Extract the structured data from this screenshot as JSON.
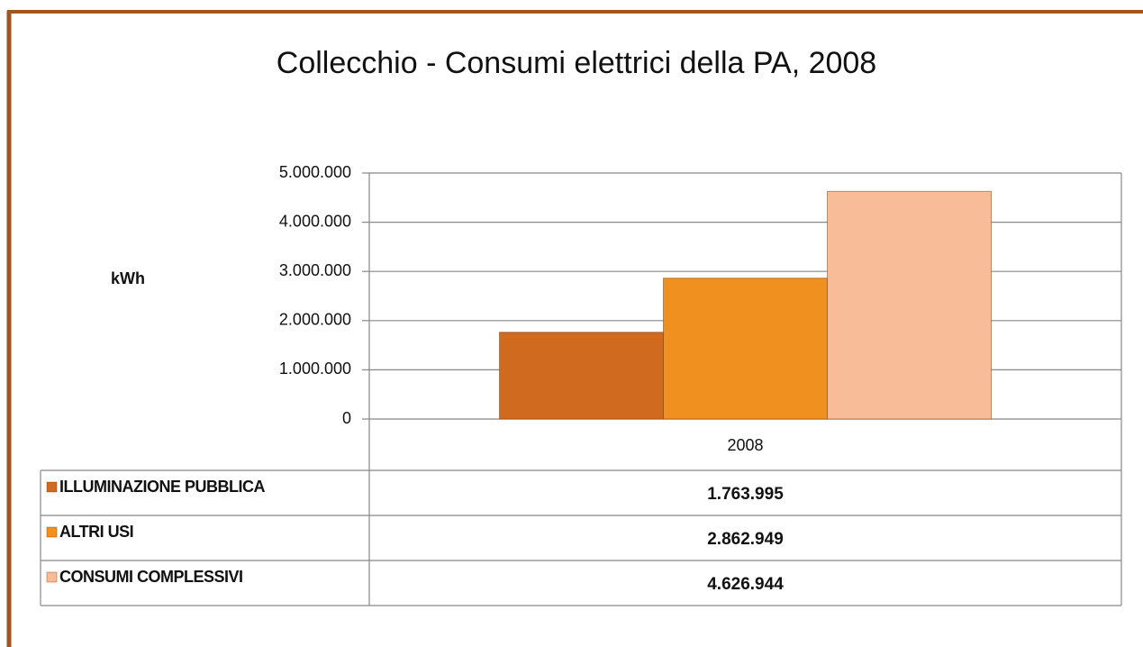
{
  "chart_data": {
    "type": "bar",
    "title": "Collecchio - Consumi  elettrici della PA, 2008",
    "ylabel": "kWh",
    "categories": [
      "2008"
    ],
    "series": [
      {
        "name": "ILLUMINAZIONE PUBBLICA",
        "color": "#cf6a1f",
        "values": [
          1763995
        ],
        "value_labels": [
          "1.763.995"
        ]
      },
      {
        "name": "ALTRI USI",
        "color": "#f0901f",
        "values": [
          2862949
        ],
        "value_labels": [
          "2.862.949"
        ]
      },
      {
        "name": "CONSUMI COMPLESSIVI",
        "color": "#f8bd98",
        "values": [
          4626944
        ],
        "value_labels": [
          "4.626.944"
        ]
      }
    ],
    "ylim": [
      0,
      5000000
    ],
    "yticks": [
      0,
      {
        "value": 1000000,
        "label": "1.000.000"
      },
      {
        "value": 2000000,
        "label": "2.000.000"
      },
      {
        "value": 3000000,
        "label": "3.000.000"
      },
      {
        "value": 4000000,
        "label": "4.000.000"
      },
      {
        "value": 5000000,
        "label": "5.000.000"
      }
    ],
    "grid": true
  }
}
